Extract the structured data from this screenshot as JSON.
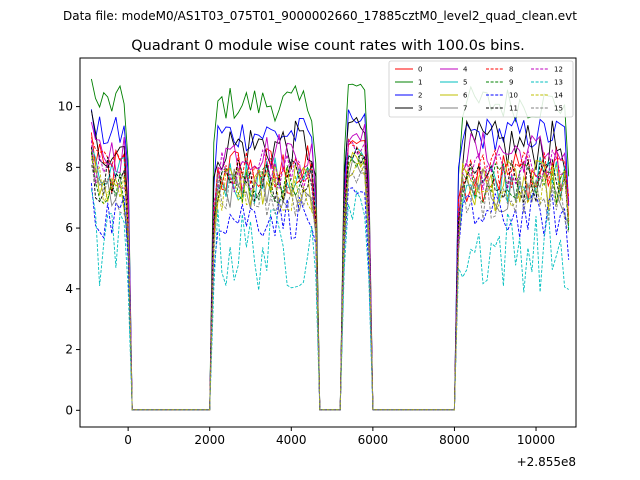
{
  "chart_data": {
    "type": "line",
    "suptitle": "Data file: modeM0/AS1T03_075T01_9000002660_17885cztM0_level2_quad_clean.evt",
    "title": "Quadrant 0 module wise count rates with 100.0s bins.",
    "xlabel": "",
    "ylabel": "",
    "x_offset_label": "+2.855e8",
    "xlim": [
      -1180,
      10980
    ],
    "ylim": [
      -0.55,
      11.6
    ],
    "xticks": [
      0,
      2000,
      4000,
      6000,
      8000,
      10000
    ],
    "xtick_labels": [
      "0",
      "2000",
      "4000",
      "6000",
      "8000",
      "10000"
    ],
    "yticks": [
      0,
      2,
      4,
      6,
      8,
      10
    ],
    "ytick_labels": [
      "0",
      "2",
      "4",
      "6",
      "8",
      "10"
    ],
    "grid": false,
    "legend_position": "top-right",
    "legend_columns": 4,
    "segments": [
      {
        "start": -900,
        "end": 0,
        "level": "on"
      },
      {
        "start": 100,
        "end": 2000,
        "level": "off"
      },
      {
        "start": 2100,
        "end": 4600,
        "level": "on"
      },
      {
        "start": 4700,
        "end": 5200,
        "level": "off"
      },
      {
        "start": 5300,
        "end": 5900,
        "level": "on"
      },
      {
        "start": 6000,
        "end": 8000,
        "level": "off"
      },
      {
        "start": 8100,
        "end": 10800,
        "level": "on"
      }
    ],
    "series": [
      {
        "name": "0",
        "color": "#ff0000",
        "style": "solid",
        "approx_mean_rate": 7.8,
        "peak_rate": 9.3
      },
      {
        "name": "1",
        "color": "#008000",
        "style": "solid",
        "approx_mean_rate": 10.1,
        "peak_rate": 11.0
      },
      {
        "name": "2",
        "color": "#0000ff",
        "style": "solid",
        "approx_mean_rate": 9.1,
        "peak_rate": 10.0
      },
      {
        "name": "3",
        "color": "#000000",
        "style": "solid",
        "approx_mean_rate": 8.7,
        "peak_rate": 10.0
      },
      {
        "name": "4",
        "color": "#bf00bf",
        "style": "solid",
        "approx_mean_rate": 8.5,
        "peak_rate": 9.6
      },
      {
        "name": "5",
        "color": "#00bfbf",
        "style": "solid",
        "approx_mean_rate": 7.6,
        "peak_rate": 8.8
      },
      {
        "name": "6",
        "color": "#bfbf00",
        "style": "solid",
        "approx_mean_rate": 7.4,
        "peak_rate": 8.7
      },
      {
        "name": "7",
        "color": "#808080",
        "style": "solid",
        "approx_mean_rate": 7.2,
        "peak_rate": 8.4
      },
      {
        "name": "8",
        "color": "#ff0000",
        "style": "dashed",
        "approx_mean_rate": 8.0,
        "peak_rate": 9.1
      },
      {
        "name": "9",
        "color": "#008000",
        "style": "dashed",
        "approx_mean_rate": 7.5,
        "peak_rate": 8.6
      },
      {
        "name": "10",
        "color": "#0000ff",
        "style": "dashed",
        "approx_mean_rate": 6.4,
        "peak_rate": 7.6
      },
      {
        "name": "11",
        "color": "#000000",
        "style": "dashed",
        "approx_mean_rate": 7.6,
        "peak_rate": 8.8
      },
      {
        "name": "12",
        "color": "#bf00bf",
        "style": "dashed",
        "approx_mean_rate": 7.9,
        "peak_rate": 9.0
      },
      {
        "name": "13",
        "color": "#00bfbf",
        "style": "dashed",
        "approx_mean_rate": 5.3,
        "peak_rate": 7.5
      },
      {
        "name": "14",
        "color": "#bfbf00",
        "style": "dashed",
        "approx_mean_rate": 7.3,
        "peak_rate": 8.5
      },
      {
        "name": "15",
        "color": "#808080",
        "style": "dashed",
        "approx_mean_rate": 7.0,
        "peak_rate": 8.2
      }
    ]
  }
}
